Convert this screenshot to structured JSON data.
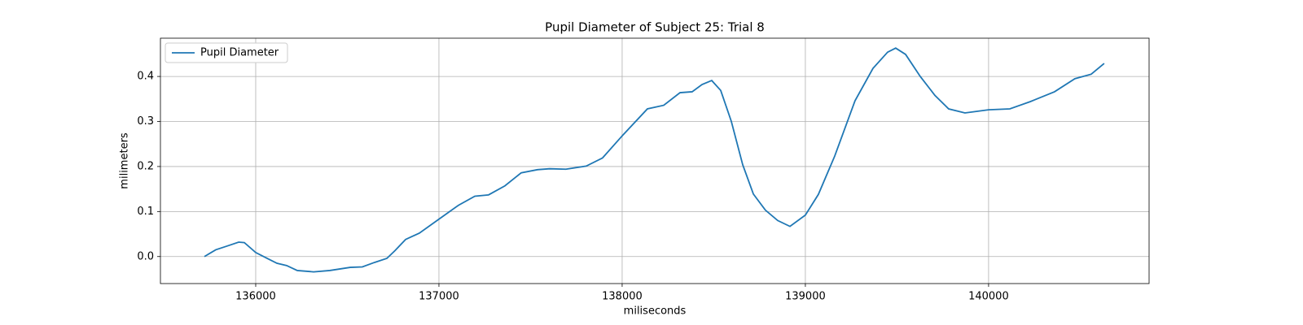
{
  "chart_data": {
    "type": "line",
    "title": "Pupil Diameter of Subject 25: Trial 8",
    "xlabel": "miliseconds",
    "ylabel": "milimeters",
    "x": [
      135720,
      135782,
      135849,
      135907,
      135938,
      136000,
      136062,
      136116,
      136169,
      136227,
      136316,
      136404,
      136516,
      136582,
      136649,
      136716,
      136760,
      136818,
      136893,
      137000,
      137107,
      137196,
      137271,
      137360,
      137449,
      137538,
      137604,
      137693,
      137804,
      137893,
      138000,
      138138,
      138227,
      138316,
      138382,
      138436,
      138489,
      138538,
      138596,
      138658,
      138716,
      138782,
      138849,
      138916,
      139000,
      139071,
      139160,
      139271,
      139369,
      139449,
      139493,
      139547,
      139627,
      139707,
      139782,
      139871,
      140000,
      140116,
      140227,
      140360,
      140471,
      140560,
      140631
    ],
    "series": [
      {
        "name": "Pupil Diameter",
        "color": "#1f77b4",
        "values": [
          0.0,
          0.015,
          0.024,
          0.032,
          0.031,
          0.009,
          -0.004,
          -0.015,
          -0.02,
          -0.031,
          -0.034,
          -0.031,
          -0.024,
          -0.023,
          -0.013,
          -0.004,
          0.013,
          0.038,
          0.052,
          0.083,
          0.114,
          0.134,
          0.137,
          0.157,
          0.186,
          0.193,
          0.195,
          0.194,
          0.201,
          0.219,
          0.268,
          0.328,
          0.336,
          0.364,
          0.366,
          0.382,
          0.391,
          0.369,
          0.3,
          0.204,
          0.139,
          0.103,
          0.08,
          0.067,
          0.092,
          0.138,
          0.223,
          0.346,
          0.418,
          0.454,
          0.463,
          0.449,
          0.4,
          0.358,
          0.328,
          0.319,
          0.326,
          0.328,
          0.344,
          0.366,
          0.395,
          0.405,
          0.429
        ]
      }
    ],
    "xlim": [
      135480,
      140876
    ],
    "ylim": [
      -0.06,
      0.485
    ],
    "xticks": [
      136000,
      137000,
      138000,
      139000,
      140000
    ],
    "yticks": [
      {
        "value": 0,
        "label": "0.0"
      },
      0.1,
      0.2,
      0.3,
      0.4
    ],
    "grid": true,
    "legend": "upper left"
  }
}
